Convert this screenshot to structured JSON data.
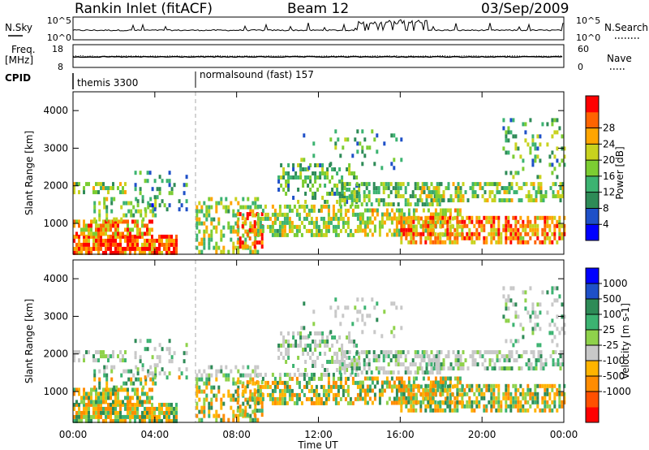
{
  "header": {
    "station": "Rankin Inlet (fitACF)",
    "beam": "Beam 12",
    "date": "03/Sep/2009"
  },
  "noise_panel": {
    "left_label": "N.Sky",
    "right_label": "N.Search",
    "left_ticks": [
      "10^5",
      "10^0"
    ],
    "right_ticks": [
      "10^5",
      "10^0"
    ]
  },
  "freq_panel": {
    "left_label_line1": "Freq.",
    "left_label_line2": "[MHz]",
    "left_ticks": [
      "18",
      "8"
    ],
    "right_label": "Nave",
    "right_ticks": [
      "60",
      "0"
    ]
  },
  "cpid_panel": {
    "label": "CPID",
    "segments": [
      {
        "label": "themis 3300",
        "start_hour": 0
      },
      {
        "label": "normalsound (fast) 157",
        "start_hour": 6
      }
    ]
  },
  "colors": {
    "power_scale": [
      "#0000ff",
      "#1e50c8",
      "#2e8b57",
      "#3cb371",
      "#7ccd32",
      "#c8d21e",
      "#ffa500",
      "#ff6400",
      "#ff0000"
    ],
    "velocity_scale": [
      "#ff0000",
      "#ff5000",
      "#ff8c00",
      "#ffb400",
      "#c8c8c8",
      "#8fd24b",
      "#3cb371",
      "#2e8b57",
      "#1e50c8",
      "#0000ff"
    ]
  },
  "chart_data": [
    {
      "type": "heatmap",
      "title": "",
      "xlabel": "",
      "ylabel": "Slant Range [km]",
      "xlim": [
        0,
        24
      ],
      "ylim": [
        180,
        4500
      ],
      "x_ticks": [
        "00:00",
        "04:00",
        "08:00",
        "12:00",
        "16:00",
        "20:00",
        "00:00"
      ],
      "y_ticks": [
        "1000",
        "2000",
        "3000",
        "4000"
      ],
      "colorbar_label": "Power [dB]",
      "colorbar_ticks": [
        "4",
        "8",
        "12",
        "16",
        "20",
        "24",
        "28"
      ],
      "colorbar_range": [
        0,
        30
      ]
    },
    {
      "type": "heatmap",
      "title": "",
      "xlabel": "Time UT",
      "ylabel": "Slant Range [km]",
      "xlim": [
        0,
        24
      ],
      "ylim": [
        180,
        4500
      ],
      "x_ticks": [
        "00:00",
        "04:00",
        "08:00",
        "12:00",
        "16:00",
        "20:00",
        "00:00"
      ],
      "y_ticks": [
        "1000",
        "2000",
        "3000",
        "4000"
      ],
      "colorbar_label": "Velocity [m s-1]",
      "colorbar_ticks": [
        "1000",
        "500",
        "100",
        "25",
        "-25",
        "-100",
        "-500",
        "-1000"
      ]
    }
  ]
}
